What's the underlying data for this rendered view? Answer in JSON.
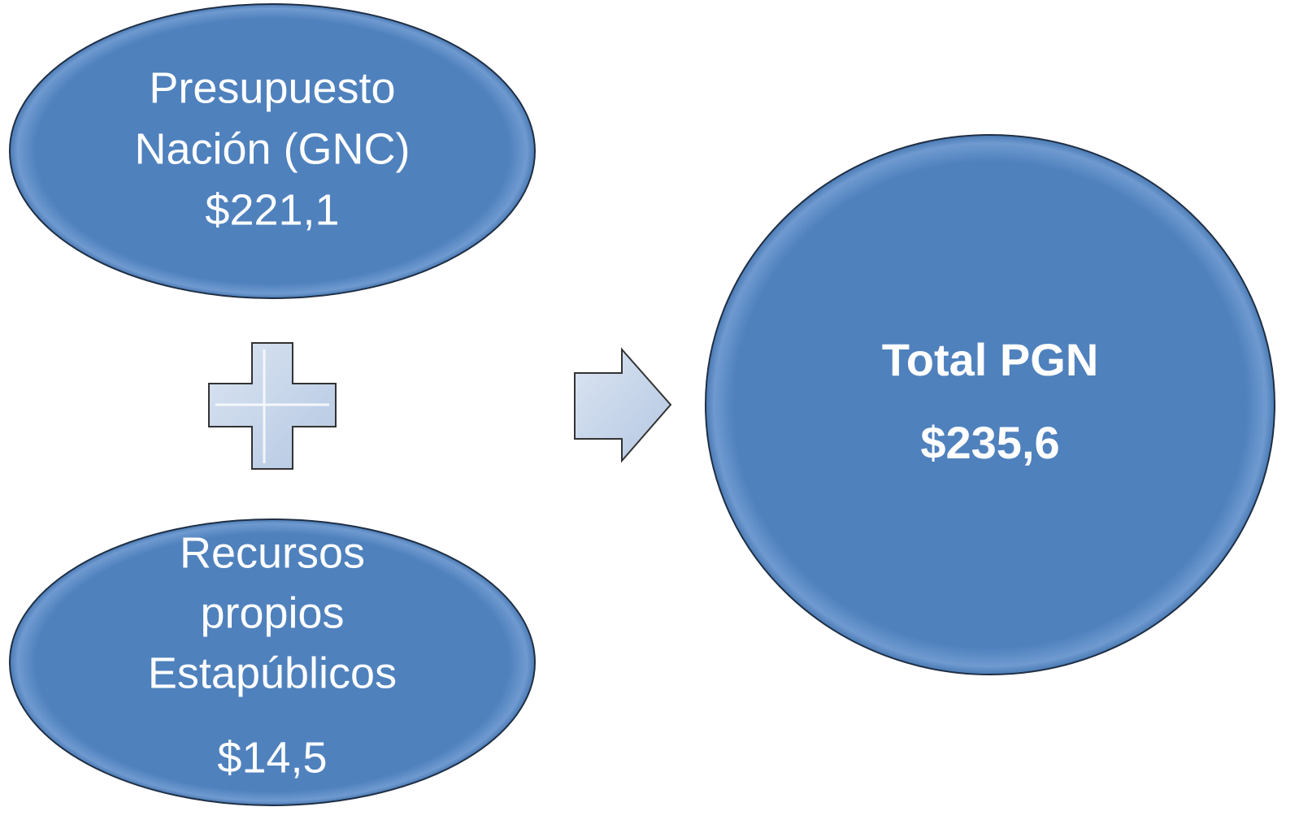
{
  "nodes": [
    {
      "lines": [
        "Presupuesto",
        "Nación (GNC)",
        "$221,1"
      ]
    },
    {
      "lines": [
        "Recursos",
        "propios",
        "Estapúblicos",
        "$14,5"
      ]
    },
    {
      "lines": [
        "Total PGN",
        "$235,6"
      ]
    }
  ]
}
